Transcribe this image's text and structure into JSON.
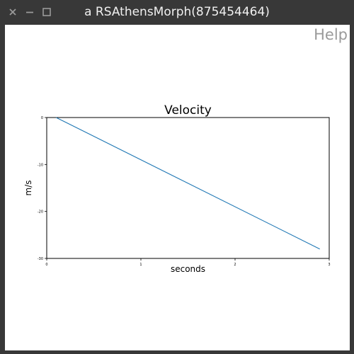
{
  "window": {
    "title": "a RSAthensMorph(875454464)"
  },
  "help_label": "Help",
  "icons": {
    "close": "close-icon",
    "minimize": "minimize-icon",
    "maximize": "maximize-icon"
  },
  "colors": {
    "titlebar": "#383838",
    "line": "#1f77b4",
    "help_text": "#9a9a9a"
  },
  "chart_data": {
    "type": "line",
    "title": "Velocity",
    "xlabel": "seconds",
    "ylabel": "m/s",
    "xlim": [
      0,
      3
    ],
    "ylim": [
      -30,
      0
    ],
    "xticks": [
      0,
      1,
      2,
      3
    ],
    "yticks": [
      0,
      -10,
      -20,
      -30
    ],
    "grid": false,
    "series": [
      {
        "x": [
          0.1,
          2.9
        ],
        "y": [
          0.0,
          -28.0
        ]
      }
    ]
  }
}
